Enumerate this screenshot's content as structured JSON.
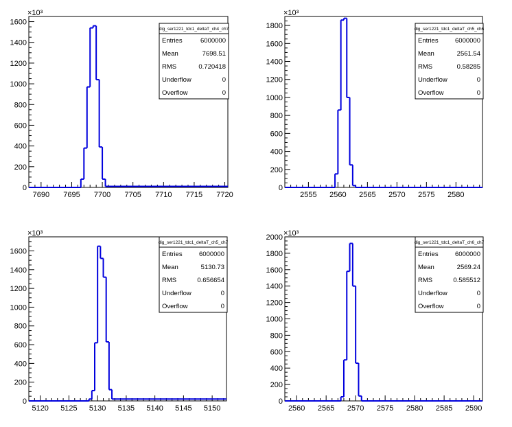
{
  "chart_data": [
    {
      "type": "histogram",
      "title": "",
      "xlabel": "",
      "ylabel": "",
      "exponent_label": "×10³",
      "xlim": [
        7688,
        7720.5
      ],
      "ylim": [
        0,
        1650
      ],
      "yticks": [
        0,
        200,
        400,
        600,
        800,
        1000,
        1200,
        1400,
        1600
      ],
      "ytick_labels": [
        "0",
        "200",
        "400",
        "600",
        "800",
        "1000",
        "1200",
        "1400",
        "1600"
      ],
      "xticks": [
        7690,
        7695,
        7700,
        7705,
        7710,
        7715,
        7720
      ],
      "xtick_labels": [
        "7690",
        "7695",
        "7700",
        "7705",
        "7710",
        "7715",
        "7720"
      ],
      "bin_edges": [
        7688,
        7696.5,
        7697,
        7697.5,
        7698,
        7698.5,
        7699,
        7699.5,
        7700,
        7700.5,
        7720.5
      ],
      "values": [
        0,
        80,
        380,
        970,
        1540,
        1560,
        1040,
        390,
        80,
        10
      ],
      "stats": {
        "name": "dig_ser1221_tdc1_deltaT_ch4_ch7",
        "rows": [
          {
            "label": "Entries",
            "value": "6000000"
          },
          {
            "label": "Mean",
            "value": "7698.51"
          },
          {
            "label": "RMS",
            "value": "0.720418"
          },
          {
            "label": "Underflow",
            "value": "0"
          },
          {
            "label": "Overflow",
            "value": "0"
          }
        ]
      }
    },
    {
      "type": "histogram",
      "title": "",
      "xlabel": "",
      "ylabel": "",
      "exponent_label": "×10³",
      "xlim": [
        2551,
        2584.5
      ],
      "ylim": [
        0,
        1900
      ],
      "yticks": [
        0,
        200,
        400,
        600,
        800,
        1000,
        1200,
        1400,
        1600,
        1800
      ],
      "ytick_labels": [
        "0",
        "200",
        "400",
        "600",
        "800",
        "1000",
        "1200",
        "1400",
        "1600",
        "1800"
      ],
      "xticks": [
        2555,
        2560,
        2565,
        2570,
        2575,
        2580
      ],
      "xtick_labels": [
        "2555",
        "2560",
        "2565",
        "2570",
        "2575",
        "2580"
      ],
      "bin_edges": [
        2551,
        2559.5,
        2560,
        2560.5,
        2561,
        2561.5,
        2562,
        2562.5,
        2563,
        2584.5
      ],
      "values": [
        0,
        150,
        860,
        1860,
        1880,
        1000,
        250,
        20,
        0
      ],
      "stats": {
        "name": "dig_ser1221_tdc1_deltaT_ch5_ch6",
        "rows": [
          {
            "label": "Entries",
            "value": "6000000"
          },
          {
            "label": "Mean",
            "value": "2561.54"
          },
          {
            "label": "RMS",
            "value": "0.58285"
          },
          {
            "label": "Underflow",
            "value": "0"
          },
          {
            "label": "Overflow",
            "value": "0"
          }
        ]
      }
    },
    {
      "type": "histogram",
      "title": "",
      "xlabel": "",
      "ylabel": "",
      "exponent_label": "×10³",
      "xlim": [
        5118,
        5152.5
      ],
      "ylim": [
        0,
        1750
      ],
      "yticks": [
        0,
        200,
        400,
        600,
        800,
        1000,
        1200,
        1400,
        1600
      ],
      "ytick_labels": [
        "0",
        "200",
        "400",
        "600",
        "800",
        "1000",
        "1200",
        "1400",
        "1600"
      ],
      "xticks": [
        5120,
        5125,
        5130,
        5135,
        5140,
        5145,
        5150
      ],
      "xtick_labels": [
        "5120",
        "5125",
        "5130",
        "5135",
        "5140",
        "5145",
        "5150"
      ],
      "bin_edges": [
        5118,
        5128.5,
        5129,
        5129.5,
        5130,
        5130.5,
        5131,
        5131.5,
        5132,
        5132.5,
        5152.5
      ],
      "values": [
        0,
        20,
        110,
        620,
        1650,
        1520,
        1320,
        630,
        120,
        20
      ],
      "stats": {
        "name": "dig_ser1221_tdc1_deltaT_ch5_ch7",
        "rows": [
          {
            "label": "Entries",
            "value": "6000000"
          },
          {
            "label": "Mean",
            "value": "5130.73"
          },
          {
            "label": "RMS",
            "value": "0.656654"
          },
          {
            "label": "Underflow",
            "value": "0"
          },
          {
            "label": "Overflow",
            "value": "0"
          }
        ]
      }
    },
    {
      "type": "histogram",
      "title": "",
      "xlabel": "",
      "ylabel": "",
      "exponent_label": "×10³",
      "xlim": [
        2558,
        2591.5
      ],
      "ylim": [
        0,
        2000
      ],
      "yticks": [
        0,
        200,
        400,
        600,
        800,
        1000,
        1200,
        1400,
        1600,
        1800,
        2000
      ],
      "ytick_labels": [
        "0",
        "200",
        "400",
        "600",
        "800",
        "1000",
        "1200",
        "1400",
        "1600",
        "1800",
        "2000"
      ],
      "xticks": [
        2560,
        2565,
        2570,
        2575,
        2580,
        2585,
        2590
      ],
      "xtick_labels": [
        "2560",
        "2565",
        "2570",
        "2575",
        "2580",
        "2585",
        "2590"
      ],
      "bin_edges": [
        2558,
        2567.5,
        2568,
        2568.5,
        2569,
        2569.5,
        2570,
        2570.5,
        2571,
        2591.5
      ],
      "values": [
        0,
        50,
        500,
        1580,
        1920,
        1400,
        460,
        60,
        0
      ],
      "stats": {
        "name": "dig_ser1221_tdc1_deltaT_ch6_ch7",
        "rows": [
          {
            "label": "Entries",
            "value": "6000000"
          },
          {
            "label": "Mean",
            "value": "2569.24"
          },
          {
            "label": "RMS",
            "value": "0.585512"
          },
          {
            "label": "Underflow",
            "value": "0"
          },
          {
            "label": "Overflow",
            "value": "0"
          }
        ]
      }
    }
  ],
  "colors": {
    "line": "#0000dd",
    "axis": "#000000",
    "background": "#ffffff"
  }
}
